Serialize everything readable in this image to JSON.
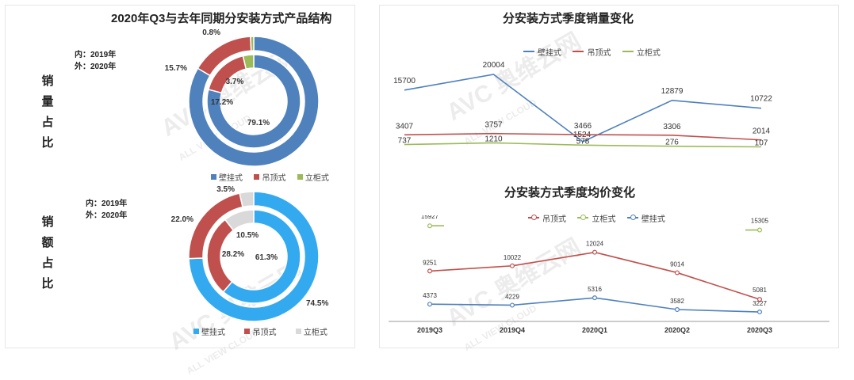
{
  "left_title": "2020年Q3与去年同期分安装方式产品结构",
  "side_labels": {
    "volume": [
      "销",
      "量",
      "占",
      "比"
    ],
    "revenue": [
      "销",
      "额",
      "占",
      "比"
    ]
  },
  "ring_note": {
    "inner": "内：2019年",
    "outer": "外：2020年"
  },
  "colors": {
    "wall": "#4f81bd",
    "ceiling": "#c0504d",
    "floor": "#9bbb59",
    "wall_rev": "#33aaf0",
    "floor_rev": "#d9d9d9"
  },
  "watermark": {
    "brand": "AVC 奥维云网",
    "sub": "ALL VIEW CLOUD"
  },
  "chart_data": [
    {
      "type": "pie",
      "donut": true,
      "name": "销量占比",
      "legend": [
        "壁挂式",
        "吊顶式",
        "立柜式"
      ],
      "outer_2020": [
        {
          "label": "壁挂式",
          "value": 83.5,
          "text": "83.5%"
        },
        {
          "label": "吊顶式",
          "value": 15.7,
          "text": "15.7%"
        },
        {
          "label": "立柜式",
          "value": 0.8,
          "text": "0.8%"
        }
      ],
      "inner_2019": [
        {
          "label": "壁挂式",
          "value": 79.1,
          "text": "79.1%"
        },
        {
          "label": "吊顶式",
          "value": 17.2,
          "text": "17.2%"
        },
        {
          "label": "立柜式",
          "value": 3.7,
          "text": "3.7%"
        }
      ]
    },
    {
      "type": "pie",
      "donut": true,
      "name": "销额占比",
      "legend": [
        "壁挂式",
        "吊顶式",
        "立柜式"
      ],
      "outer_2020": [
        {
          "label": "壁挂式",
          "value": 74.5,
          "text": "74.5%"
        },
        {
          "label": "吊顶式",
          "value": 22.0,
          "text": "22.0%"
        },
        {
          "label": "立柜式",
          "value": 3.5,
          "text": "3.5%"
        }
      ],
      "inner_2019": [
        {
          "label": "壁挂式",
          "value": 61.3,
          "text": "61.3%"
        },
        {
          "label": "吊顶式",
          "value": 28.2,
          "text": "28.2%"
        },
        {
          "label": "立柜式",
          "value": 10.5,
          "text": "10.5%"
        }
      ]
    },
    {
      "type": "line",
      "title": "分安装方式季度销量变化",
      "categories": [
        "2019Q3",
        "2019Q4",
        "2020Q1",
        "2020Q2",
        "2020Q3"
      ],
      "series": [
        {
          "name": "壁挂式",
          "color": "#4f81bd",
          "values": [
            15700,
            20004,
            1524,
            12879,
            10722
          ]
        },
        {
          "name": "吊顶式",
          "color": "#c0504d",
          "values": [
            3407,
            3757,
            3466,
            3306,
            2014
          ]
        },
        {
          "name": "立柜式",
          "color": "#9bbb59",
          "values": [
            737,
            1210,
            578,
            276,
            107
          ]
        }
      ]
    },
    {
      "type": "line",
      "title": "分安装方式季度均价变化",
      "categories": [
        "2019Q3",
        "2019Q4",
        "2020Q1",
        "2020Q2",
        "2020Q3"
      ],
      "series": [
        {
          "name": "吊顶式",
          "color": "#c0504d",
          "values": [
            9251,
            10022,
            12024,
            9014,
            5081
          ]
        },
        {
          "name": "立柜式",
          "color": "#9bbb59",
          "values": [
            15927,
            null,
            null,
            null,
            15305
          ]
        },
        {
          "name": "壁挂式",
          "color": "#4f81bd",
          "values": [
            4373,
            4229,
            5316,
            3582,
            3227
          ]
        }
      ]
    }
  ]
}
